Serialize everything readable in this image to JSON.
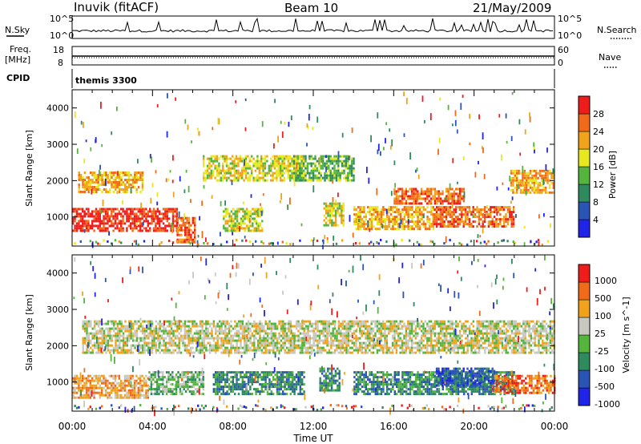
{
  "header": {
    "station": "Inuvik (fitACF)",
    "beam": "Beam 10",
    "date": "21/May/2009"
  },
  "top_panels": {
    "nsky_label": "N.Sky",
    "nsky_ticks": [
      "10^5",
      "10^0"
    ],
    "nsearch_label": "N.Search",
    "nsearch_ticks": [
      "10^5",
      "10^0"
    ],
    "freq_label_1": "Freq.",
    "freq_label_2": "[MHz]",
    "freq_ticks": [
      "18",
      "8"
    ],
    "nave_label": "Nave",
    "nave_ticks": [
      "60",
      "0"
    ],
    "cpid_label": "CPID",
    "cpid_text": "themis 3300"
  },
  "chart_data": [
    {
      "type": "heatmap",
      "panel": "power",
      "ylabel": "Slant Range [km]",
      "yticks": [
        1000,
        2000,
        3000,
        4000
      ],
      "ylim": [
        200,
        4500
      ],
      "xlabel": "Time UT",
      "xticks": [
        "00:00",
        "04:00",
        "08:00",
        "12:00",
        "16:00",
        "20:00",
        "00:00"
      ],
      "xlim_hours": [
        0,
        24
      ],
      "colorbar": {
        "label": "Power [dB]",
        "ticks": [
          "4",
          "8",
          "12",
          "16",
          "20",
          "24",
          "28"
        ],
        "colors": [
          "#1f24e8",
          "#2a55b4",
          "#2f8a5d",
          "#55b43c",
          "#e7e81f",
          "#f0a31a",
          "#f06a1a",
          "#ef1c1c"
        ]
      },
      "regions": [
        {
          "t0": 0.0,
          "t1": 5.2,
          "r0": 650,
          "r1": 1250,
          "level": 7
        },
        {
          "t0": 0.3,
          "t1": 3.5,
          "r0": 1700,
          "r1": 2250,
          "level": 5
        },
        {
          "t0": 5.2,
          "t1": 6.1,
          "r0": 300,
          "r1": 1000,
          "level": 6
        },
        {
          "t0": 6.5,
          "t1": 11.5,
          "r0": 2000,
          "r1": 2700,
          "level": 4
        },
        {
          "t0": 7.5,
          "t1": 9.5,
          "r0": 650,
          "r1": 1250,
          "level": 4
        },
        {
          "t0": 11.0,
          "t1": 14.0,
          "r0": 2000,
          "r1": 2700,
          "level": 3
        },
        {
          "t0": 12.5,
          "t1": 13.5,
          "r0": 800,
          "r1": 1400,
          "level": 4
        },
        {
          "t0": 14.0,
          "t1": 18.0,
          "r0": 700,
          "r1": 1300,
          "level": 5
        },
        {
          "t0": 16.0,
          "t1": 19.5,
          "r0": 1400,
          "r1": 1800,
          "level": 6
        },
        {
          "t0": 18.0,
          "t1": 22.0,
          "r0": 750,
          "r1": 1300,
          "level": 6
        },
        {
          "t0": 21.8,
          "t1": 24.0,
          "r0": 1700,
          "r1": 2300,
          "level": 5
        }
      ]
    },
    {
      "type": "heatmap",
      "panel": "velocity",
      "ylabel": "Slant Range [km]",
      "yticks": [
        1000,
        2000,
        3000,
        4000
      ],
      "ylim": [
        200,
        4500
      ],
      "xlabel": "Time UT",
      "xticks": [
        "00:00",
        "04:00",
        "08:00",
        "12:00",
        "16:00",
        "20:00",
        "00:00"
      ],
      "xlim_hours": [
        0,
        24
      ],
      "colorbar": {
        "label": "Velocity [m s^-1]",
        "ticks": [
          "1000",
          "500",
          "100",
          "25",
          "-25",
          "-100",
          "-500",
          "-1000"
        ],
        "colors": [
          "#1f24e8",
          "#2a55b4",
          "#2f8a5d",
          "#55b43c",
          "#c8c8c0",
          "#f0a31a",
          "#f06a1a",
          "#ef1c1c"
        ]
      },
      "regions": [
        {
          "t0": 0.0,
          "t1": 3.8,
          "r0": 600,
          "r1": 1200,
          "level": 5
        },
        {
          "t0": 3.8,
          "t1": 6.5,
          "r0": 650,
          "r1": 1300,
          "level": 3
        },
        {
          "t0": 0.5,
          "t1": 24.0,
          "r0": 1800,
          "r1": 2700,
          "level": 4
        },
        {
          "t0": 7.0,
          "t1": 11.5,
          "r0": 650,
          "r1": 1300,
          "level": 2
        },
        {
          "t0": 12.3,
          "t1": 13.3,
          "r0": 750,
          "r1": 1400,
          "level": 2
        },
        {
          "t0": 14.0,
          "t1": 22.0,
          "r0": 700,
          "r1": 1300,
          "level": 2
        },
        {
          "t0": 18.0,
          "t1": 21.0,
          "r0": 900,
          "r1": 1400,
          "level": 1
        },
        {
          "t0": 21.0,
          "t1": 24.0,
          "r0": 700,
          "r1": 1200,
          "level": 6
        }
      ]
    }
  ]
}
